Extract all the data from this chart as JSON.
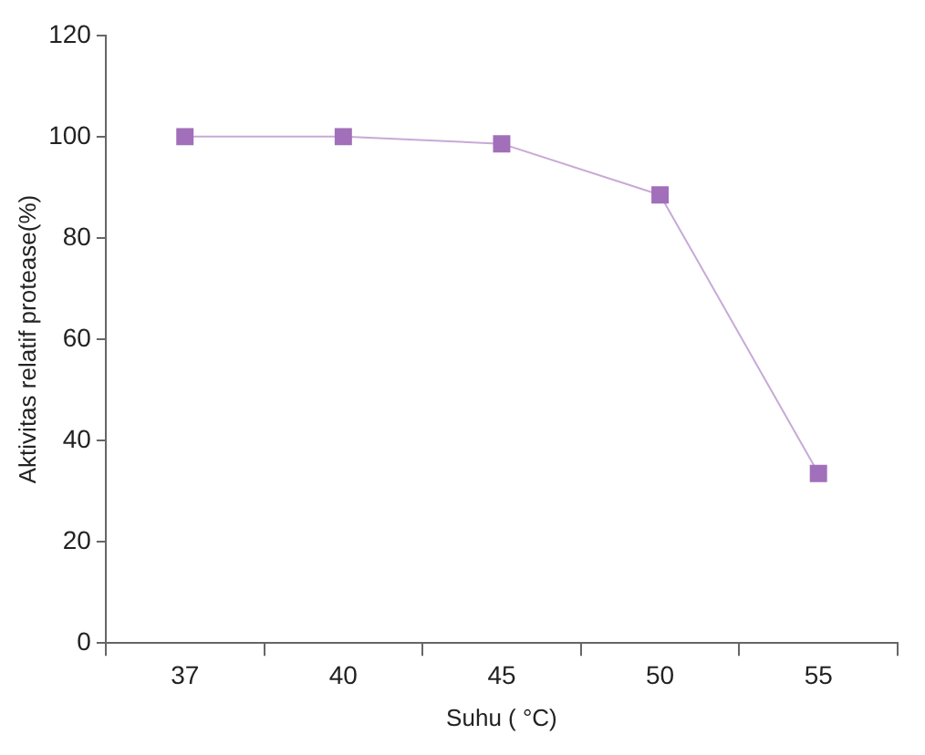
{
  "chart_data": {
    "type": "line",
    "xlabel": "Suhu ( °C)",
    "ylabel": "Aktivitas relatif protease(%)",
    "categories": [
      "37",
      "40",
      "45",
      "50",
      "55"
    ],
    "series": [
      {
        "color": "#a26fba",
        "values": [
          100,
          100,
          98.6,
          88.5,
          33.5
        ]
      }
    ],
    "ylim": [
      0,
      120
    ],
    "yticks": [
      0,
      20,
      40,
      60,
      80,
      100,
      120
    ],
    "grid": false,
    "legend": false,
    "marker": "square",
    "line_style": "solid"
  }
}
